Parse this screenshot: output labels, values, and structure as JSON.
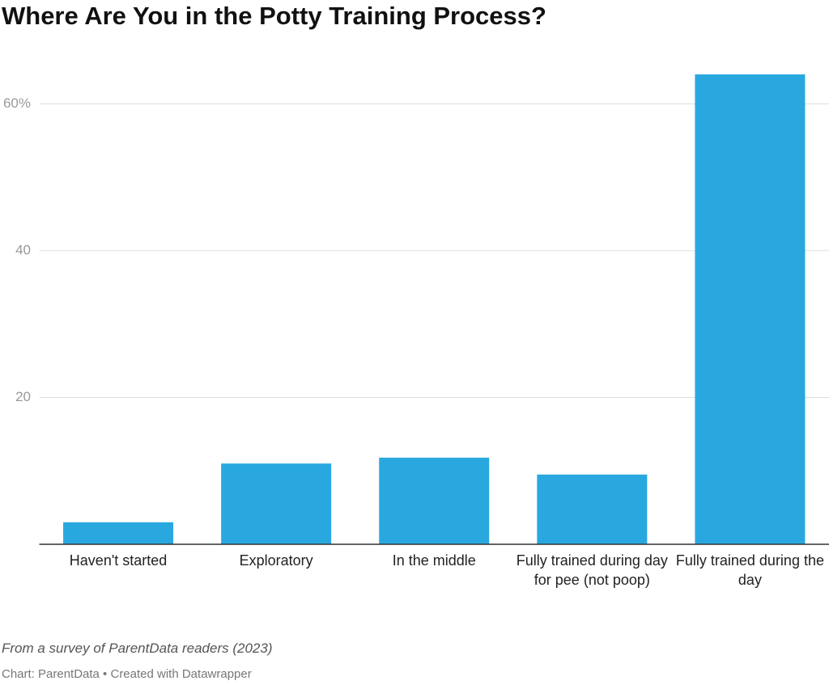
{
  "chart_data": {
    "type": "bar",
    "title": "Where Are You in the Potty Training Process?",
    "categories": [
      "Haven't started",
      "Exploratory",
      "In the middle",
      "Fully trained during day for pee (not poop)",
      "Fully trained during the day"
    ],
    "values": [
      3,
      11,
      11.8,
      9.5,
      64
    ],
    "color": "#29a8e0",
    "ylim": [
      0,
      64
    ],
    "yticks": [
      20,
      40,
      {
        "value": 60,
        "label": "60%"
      }
    ],
    "grid": true,
    "note": "From a survey of ParentData readers (2023)",
    "source": "Chart: ParentData • Created with Datawrapper"
  }
}
